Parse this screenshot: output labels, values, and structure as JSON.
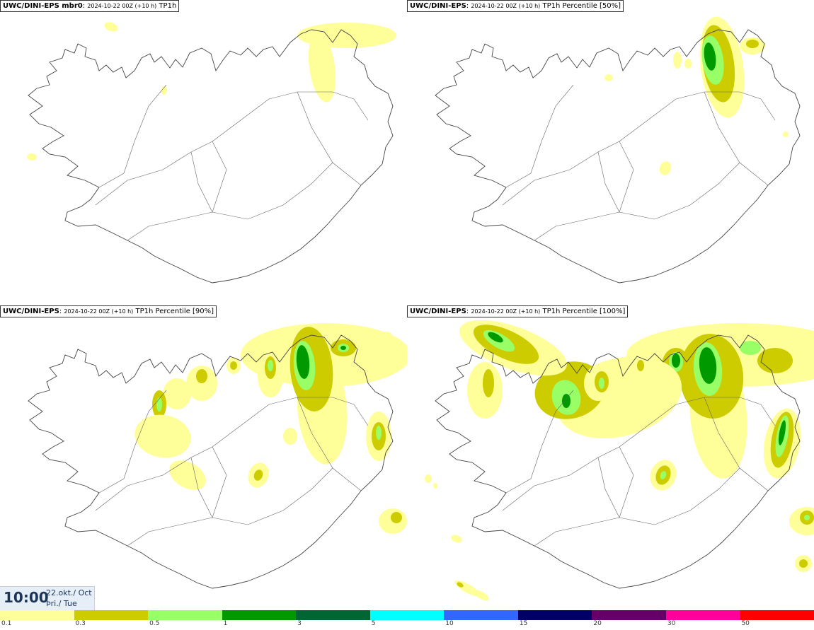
{
  "panels": [
    {
      "id": "mbr0",
      "model": "UWC/DINI-EPS mbr0",
      "init": "2024-10-22 00Z (+10 h)",
      "field": "TP1h"
    },
    {
      "id": "p50",
      "model": "UWC/DINI-EPS",
      "init": "2024-10-22 00Z (+10 h)",
      "field": "TP1h Percentile [50%]"
    },
    {
      "id": "p90",
      "model": "UWC/DINI-EPS",
      "init": "2024-10-22 00Z (+10 h)",
      "field": "TP1h Percentile [90%]"
    },
    {
      "id": "p100",
      "model": "UWC/DINI-EPS",
      "init": "2024-10-22 00Z (+10 h)",
      "field": "TP1h Percentile [100%]"
    }
  ],
  "valid": {
    "time": "10:00",
    "date": "22.okt./ Oct",
    "day": "Þri./ Tue"
  },
  "legend": {
    "bins": [
      {
        "label": "0.1",
        "color": "#ffff99"
      },
      {
        "label": "0.3",
        "color": "#cccc00"
      },
      {
        "label": "0.5",
        "color": "#99ff66"
      },
      {
        "label": "1",
        "color": "#009900"
      },
      {
        "label": "3",
        "color": "#006633"
      },
      {
        "label": "5",
        "color": "#00ffff"
      },
      {
        "label": "10",
        "color": "#3366ff"
      },
      {
        "label": "15",
        "color": "#000066"
      },
      {
        "label": "20",
        "color": "#660066"
      },
      {
        "label": "30",
        "color": "#ff0099"
      },
      {
        "label": "50",
        "color": "#ff0000"
      }
    ]
  }
}
